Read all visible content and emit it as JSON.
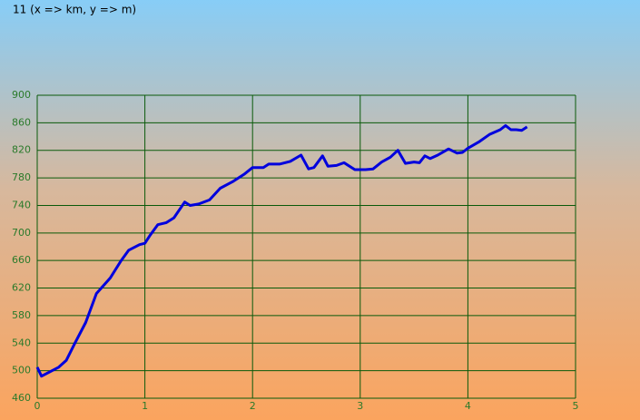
{
  "chart_data": {
    "type": "line",
    "title": "11 (x => km, y => m)",
    "x": [
      0,
      0.04,
      0.1,
      0.2,
      0.27,
      0.35,
      0.45,
      0.55,
      0.68,
      0.78,
      0.85,
      0.95,
      1.0,
      1.05,
      1.12,
      1.2,
      1.27,
      1.37,
      1.42,
      1.5,
      1.6,
      1.7,
      1.82,
      1.92,
      2.0,
      2.1,
      2.15,
      2.25,
      2.35,
      2.45,
      2.52,
      2.57,
      2.65,
      2.7,
      2.78,
      2.85,
      2.95,
      3.05,
      3.12,
      3.2,
      3.28,
      3.35,
      3.42,
      3.5,
      3.55,
      3.6,
      3.65,
      3.72,
      3.82,
      3.9,
      3.95,
      4.0,
      4.1,
      4.2,
      4.3,
      4.35,
      4.4,
      4.45,
      4.5,
      4.55
    ],
    "values": [
      505,
      492,
      497,
      505,
      515,
      540,
      570,
      612,
      635,
      660,
      675,
      683,
      685,
      697,
      712,
      715,
      722,
      745,
      740,
      742,
      748,
      765,
      775,
      785,
      795,
      795,
      800,
      800,
      804,
      813,
      793,
      795,
      812,
      797,
      798,
      802,
      792,
      792,
      793,
      803,
      810,
      820,
      801,
      803,
      802,
      812,
      808,
      813,
      822,
      816,
      817,
      823,
      832,
      843,
      850,
      856,
      850,
      850,
      849,
      854
    ],
    "color": "#0000dd",
    "xlim": [
      0,
      5
    ],
    "ylim": [
      460,
      900
    ],
    "xticks": [
      0,
      1,
      2,
      3,
      4,
      5
    ],
    "yticks": [
      460,
      500,
      540,
      580,
      620,
      660,
      700,
      740,
      780,
      820,
      860,
      900
    ],
    "grid": true
  }
}
